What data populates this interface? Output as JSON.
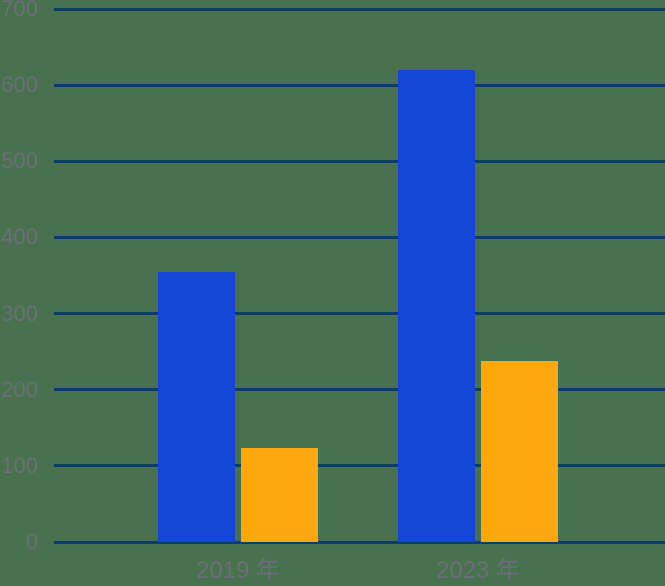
{
  "chart_data": {
    "type": "bar",
    "categories": [
      "2019 年",
      "2023 年"
    ],
    "series": [
      {
        "name": "blue",
        "color": "#1247d4",
        "values": [
          355,
          620
        ]
      },
      {
        "name": "orange",
        "color": "#ffa70f",
        "values": [
          123,
          238
        ]
      }
    ],
    "title": "",
    "xlabel": "",
    "ylabel": "",
    "ylim": [
      0,
      700
    ],
    "ytick_interval": 100,
    "ytick_labels": [
      "0",
      "100",
      "200",
      "300",
      "400",
      "500",
      "600",
      "700"
    ],
    "grid": true,
    "legend": false,
    "background_color": "#48724e",
    "gridline_color": "#0c3d66",
    "tick_label_color": "#6b6d78"
  }
}
